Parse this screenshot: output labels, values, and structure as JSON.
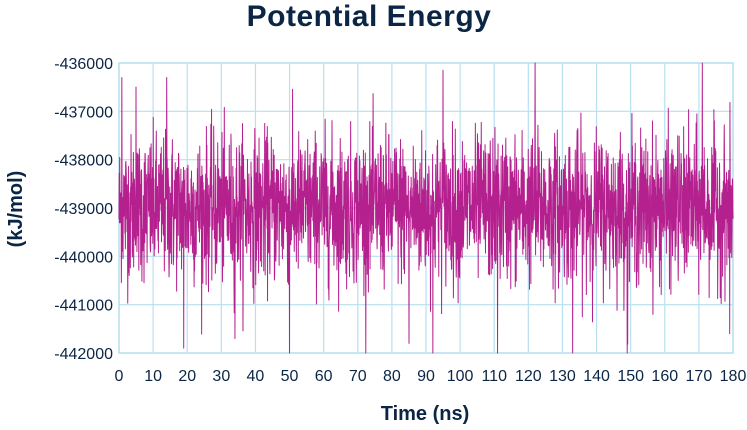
{
  "chart_data": {
    "type": "line",
    "title": "Potential  Energy",
    "xlabel": "Time (ns)",
    "ylabel": "(kJ/mol)",
    "xlim": [
      0,
      180
    ],
    "ylim": [
      -442000,
      -436000
    ],
    "x_ticks": [
      "0",
      "10",
      "20",
      "30",
      "40",
      "50",
      "60",
      "70",
      "80",
      "90",
      "100",
      "110",
      "120",
      "130",
      "140",
      "150",
      "160",
      "170",
      "180"
    ],
    "y_ticks": [
      "-436000",
      "-437000",
      "-438000",
      "-439000",
      "-440000",
      "-441000",
      "-442000"
    ],
    "grid": true,
    "legend": "none",
    "series": [
      {
        "color": "#b5208f",
        "mean": -439000,
        "band_upper": -437500,
        "band_lower": -440500,
        "max": -436000,
        "min": -442000,
        "x": [
          0,
          10,
          20,
          30,
          40,
          50,
          60,
          70,
          80,
          90,
          100,
          110,
          120,
          130,
          140,
          150,
          160,
          170,
          180
        ],
        "values": [
          -439000,
          -439100,
          -438900,
          -439050,
          -438950,
          -439000,
          -439020,
          -438980,
          -439010,
          -438990,
          -439000,
          -439030,
          -438970,
          -439000,
          -439010,
          -438990,
          -439020,
          -438980,
          -439000
        ],
        "notable_max": [
          {
            "x": 0.8,
            "y": -436300
          },
          {
            "x": 5,
            "y": -436500
          },
          {
            "x": 14,
            "y": -436300
          },
          {
            "x": 19,
            "y": -436050
          },
          {
            "x": 95,
            "y": -436150
          },
          {
            "x": 122,
            "y": -436000
          },
          {
            "x": 171,
            "y": -436000
          }
        ],
        "notable_min": [
          {
            "x": 19,
            "y": -441900
          },
          {
            "x": 34,
            "y": -441700
          },
          {
            "x": 50,
            "y": -442000
          },
          {
            "x": 85,
            "y": -441800
          },
          {
            "x": 92,
            "y": -442000
          },
          {
            "x": 111,
            "y": -442000
          },
          {
            "x": 133,
            "y": -442000
          },
          {
            "x": 149,
            "y": -442000
          },
          {
            "x": 179,
            "y": -441600
          }
        ]
      }
    ]
  }
}
